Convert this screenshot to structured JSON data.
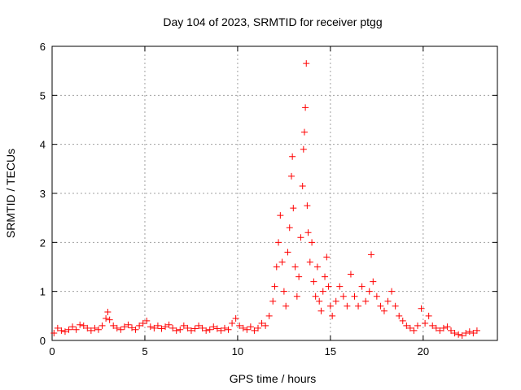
{
  "chart_data": {
    "type": "scatter",
    "title": "Day 104 of 2023, SRMTID for receiver ptgg",
    "xlabel": "GPS time / hours",
    "ylabel": "SRMTID / TECUs",
    "xlim": [
      0,
      24
    ],
    "ylim": [
      0,
      6
    ],
    "xticks": [
      0,
      5,
      10,
      15,
      20
    ],
    "yticks": [
      0,
      1,
      2,
      3,
      4,
      5,
      6
    ],
    "grid": true,
    "marker": "+",
    "marker_color": "#ff0000",
    "series": [
      {
        "name": "SRMTID",
        "points": [
          [
            0.1,
            0.15
          ],
          [
            0.3,
            0.25
          ],
          [
            0.5,
            0.2
          ],
          [
            0.7,
            0.18
          ],
          [
            0.9,
            0.22
          ],
          [
            1.1,
            0.28
          ],
          [
            1.3,
            0.22
          ],
          [
            1.5,
            0.32
          ],
          [
            1.7,
            0.3
          ],
          [
            1.9,
            0.25
          ],
          [
            2.1,
            0.2
          ],
          [
            2.3,
            0.25
          ],
          [
            2.5,
            0.22
          ],
          [
            2.7,
            0.3
          ],
          [
            2.9,
            0.45
          ],
          [
            3.0,
            0.58
          ],
          [
            3.1,
            0.42
          ],
          [
            3.3,
            0.3
          ],
          [
            3.5,
            0.25
          ],
          [
            3.7,
            0.22
          ],
          [
            3.9,
            0.28
          ],
          [
            4.1,
            0.32
          ],
          [
            4.3,
            0.26
          ],
          [
            4.5,
            0.22
          ],
          [
            4.7,
            0.3
          ],
          [
            4.9,
            0.35
          ],
          [
            5.1,
            0.4
          ],
          [
            5.3,
            0.28
          ],
          [
            5.5,
            0.25
          ],
          [
            5.7,
            0.3
          ],
          [
            5.9,
            0.24
          ],
          [
            6.1,
            0.28
          ],
          [
            6.3,
            0.32
          ],
          [
            6.5,
            0.25
          ],
          [
            6.7,
            0.2
          ],
          [
            6.9,
            0.22
          ],
          [
            7.1,
            0.3
          ],
          [
            7.3,
            0.25
          ],
          [
            7.5,
            0.2
          ],
          [
            7.7,
            0.24
          ],
          [
            7.9,
            0.3
          ],
          [
            8.1,
            0.25
          ],
          [
            8.3,
            0.2
          ],
          [
            8.5,
            0.22
          ],
          [
            8.7,
            0.28
          ],
          [
            8.9,
            0.24
          ],
          [
            9.1,
            0.2
          ],
          [
            9.3,
            0.25
          ],
          [
            9.5,
            0.22
          ],
          [
            9.7,
            0.35
          ],
          [
            9.9,
            0.45
          ],
          [
            10.1,
            0.3
          ],
          [
            10.3,
            0.25
          ],
          [
            10.5,
            0.22
          ],
          [
            10.7,
            0.28
          ],
          [
            10.9,
            0.2
          ],
          [
            11.1,
            0.25
          ],
          [
            11.3,
            0.35
          ],
          [
            11.5,
            0.3
          ],
          [
            11.7,
            0.5
          ],
          [
            11.9,
            0.8
          ],
          [
            12.0,
            1.1
          ],
          [
            12.1,
            1.5
          ],
          [
            12.2,
            2.0
          ],
          [
            12.3,
            2.55
          ],
          [
            12.4,
            1.6
          ],
          [
            12.5,
            1.0
          ],
          [
            12.6,
            0.7
          ],
          [
            12.7,
            1.8
          ],
          [
            12.8,
            2.3
          ],
          [
            12.9,
            3.35
          ],
          [
            12.95,
            3.75
          ],
          [
            13.0,
            2.7
          ],
          [
            13.1,
            1.5
          ],
          [
            13.2,
            0.9
          ],
          [
            13.3,
            1.3
          ],
          [
            13.4,
            2.1
          ],
          [
            13.5,
            3.15
          ],
          [
            13.55,
            3.9
          ],
          [
            13.6,
            4.25
          ],
          [
            13.65,
            4.75
          ],
          [
            13.7,
            5.65
          ],
          [
            13.75,
            2.75
          ],
          [
            13.8,
            2.2
          ],
          [
            13.9,
            1.6
          ],
          [
            14.0,
            2.0
          ],
          [
            14.1,
            1.2
          ],
          [
            14.2,
            0.9
          ],
          [
            14.3,
            1.5
          ],
          [
            14.4,
            0.8
          ],
          [
            14.5,
            0.6
          ],
          [
            14.6,
            1.0
          ],
          [
            14.7,
            1.3
          ],
          [
            14.8,
            1.7
          ],
          [
            14.9,
            1.1
          ],
          [
            15.0,
            0.7
          ],
          [
            15.1,
            0.5
          ],
          [
            15.3,
            0.8
          ],
          [
            15.5,
            1.1
          ],
          [
            15.7,
            0.9
          ],
          [
            15.9,
            0.7
          ],
          [
            16.1,
            1.35
          ],
          [
            16.3,
            0.9
          ],
          [
            16.5,
            0.7
          ],
          [
            16.7,
            1.1
          ],
          [
            16.9,
            0.8
          ],
          [
            17.1,
            1.0
          ],
          [
            17.2,
            1.75
          ],
          [
            17.3,
            1.2
          ],
          [
            17.5,
            0.9
          ],
          [
            17.7,
            0.7
          ],
          [
            17.9,
            0.6
          ],
          [
            18.1,
            0.8
          ],
          [
            18.3,
            1.0
          ],
          [
            18.5,
            0.7
          ],
          [
            18.7,
            0.5
          ],
          [
            18.9,
            0.4
          ],
          [
            19.1,
            0.3
          ],
          [
            19.3,
            0.25
          ],
          [
            19.5,
            0.2
          ],
          [
            19.7,
            0.3
          ],
          [
            19.9,
            0.65
          ],
          [
            20.1,
            0.35
          ],
          [
            20.3,
            0.5
          ],
          [
            20.5,
            0.3
          ],
          [
            20.7,
            0.25
          ],
          [
            20.9,
            0.2
          ],
          [
            21.1,
            0.25
          ],
          [
            21.3,
            0.28
          ],
          [
            21.5,
            0.2
          ],
          [
            21.7,
            0.15
          ],
          [
            21.9,
            0.12
          ],
          [
            22.1,
            0.1
          ],
          [
            22.3,
            0.15
          ],
          [
            22.5,
            0.18
          ],
          [
            22.7,
            0.15
          ],
          [
            22.9,
            0.2
          ]
        ]
      }
    ]
  }
}
